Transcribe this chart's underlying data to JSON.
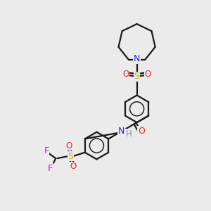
{
  "bg_color": "#ebebeb",
  "bond_color": "#1a1a1a",
  "N_color": "#2020ff",
  "O_color": "#ff2020",
  "S_color": "#ccaa00",
  "F_color": "#ee00ee",
  "H_color": "#909090",
  "line_width": 1.6,
  "fig_width": 3.0,
  "fig_height": 3.0,
  "dpi": 100,
  "xlim": [
    0,
    10
  ],
  "ylim": [
    0,
    10
  ]
}
